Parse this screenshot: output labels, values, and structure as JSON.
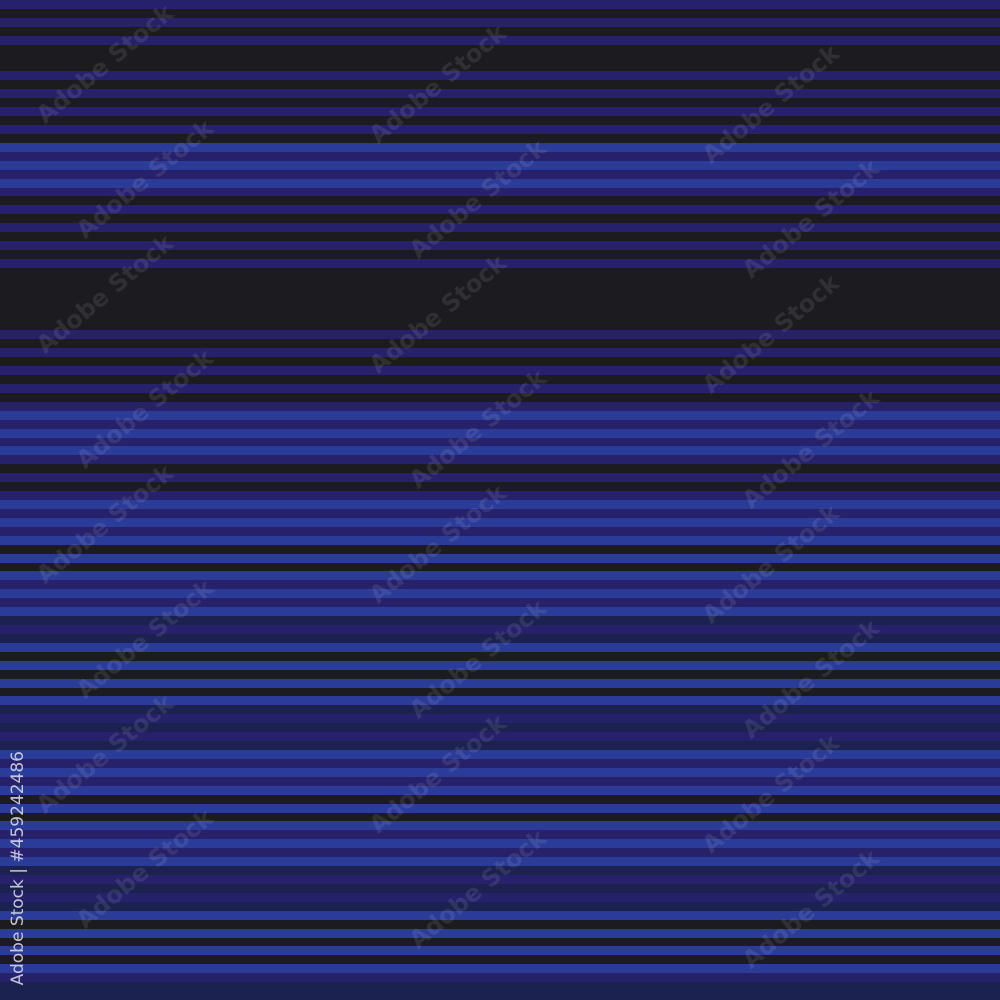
{
  "colors": {
    "D": "#1c1b1f",
    "N": "#26216a",
    "B": "#2b3b98",
    "K": "#1b2250"
  },
  "stripe_sequence": "NDNDNDDDNDNDNDNDBNBNBNDNDNDNDNDDDDDDDNDNDNDNDNBNBNBNDNDNBNBNBDBDBNBNBKNKBDBDBDBKNKNKBNBNBDBDBNBNBKNKNKBDBDBDBNKK",
  "watermark": {
    "text": "Adobe Stock",
    "id_text": "Adobe Stock | #459242486"
  }
}
